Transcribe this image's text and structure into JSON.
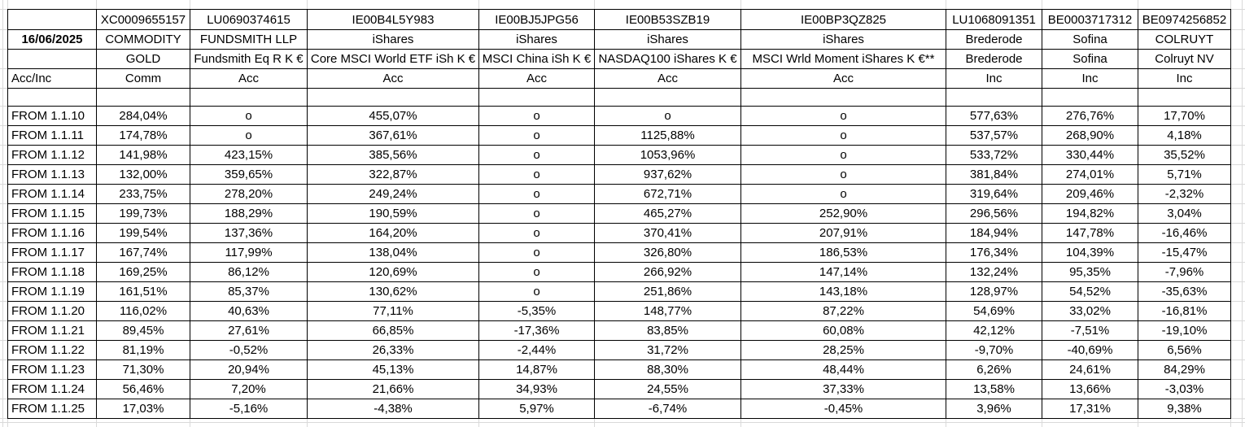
{
  "sheet": {
    "date": "16/06/2025",
    "row_label_header": "Acc/Inc",
    "columns": [
      {
        "isin": "XC0009655157",
        "name": "COMMODITY",
        "fund": "GOLD",
        "type": "Comm"
      },
      {
        "isin": "LU0690374615",
        "name": "FUNDSMITH LLP",
        "fund": "Fundsmith Eq R K €",
        "type": "Acc"
      },
      {
        "isin": "IE00B4L5Y983",
        "name": "iShares",
        "fund": "Core MSCI World ETF iSh K €",
        "type": "Acc"
      },
      {
        "isin": "IE00BJ5JPG56",
        "name": "iShares",
        "fund": "MSCI China iSh K €",
        "type": "Acc"
      },
      {
        "isin": "IE00B53SZB19",
        "name": "iShares",
        "fund": "NASDAQ100 iShares K €",
        "type": "Acc"
      },
      {
        "isin": "IE00BP3QZ825",
        "name": "iShares",
        "fund": "MSCI Wrld Moment iShares K €**",
        "type": "Acc"
      },
      {
        "isin": "LU1068091351",
        "name": "Brederode",
        "fund": "Brederode",
        "type": "Inc"
      },
      {
        "isin": "BE0003717312",
        "name": "Sofina",
        "fund": "Sofina",
        "type": "Inc"
      },
      {
        "isin": "BE0974256852",
        "name": "COLRUYT",
        "fund": "Colruyt NV",
        "type": "Inc"
      }
    ],
    "rows": [
      {
        "label": "FROM 1.1.10",
        "values": [
          "284,04%",
          "o",
          "455,07%",
          "o",
          "o",
          "o",
          "577,63%",
          "276,76%",
          "17,70%"
        ]
      },
      {
        "label": "FROM 1.1.11",
        "values": [
          "174,78%",
          "o",
          "367,61%",
          "o",
          "1125,88%",
          "o",
          "537,57%",
          "268,90%",
          "4,18%"
        ]
      },
      {
        "label": "FROM 1.1.12",
        "values": [
          "141,98%",
          "423,15%",
          "385,56%",
          "o",
          "1053,96%",
          "o",
          "533,72%",
          "330,44%",
          "35,52%"
        ]
      },
      {
        "label": "FROM 1.1.13",
        "values": [
          "132,00%",
          "359,65%",
          "322,87%",
          "o",
          "937,62%",
          "o",
          "381,84%",
          "274,01%",
          "5,71%"
        ]
      },
      {
        "label": "FROM 1.1.14",
        "values": [
          "233,75%",
          "278,20%",
          "249,24%",
          "o",
          "672,71%",
          "o",
          "319,64%",
          "209,46%",
          "-2,32%"
        ]
      },
      {
        "label": "FROM 1.1.15",
        "values": [
          "199,73%",
          "188,29%",
          "190,59%",
          "o",
          "465,27%",
          "252,90%",
          "296,56%",
          "194,82%",
          "3,04%"
        ]
      },
      {
        "label": "FROM 1.1.16",
        "values": [
          "199,54%",
          "137,36%",
          "164,20%",
          "o",
          "370,41%",
          "207,91%",
          "184,94%",
          "147,78%",
          "-16,46%"
        ]
      },
      {
        "label": "FROM 1.1.17",
        "values": [
          "167,74%",
          "117,99%",
          "138,04%",
          "o",
          "326,80%",
          "186,53%",
          "176,34%",
          "104,39%",
          "-15,47%"
        ]
      },
      {
        "label": "FROM 1.1.18",
        "values": [
          "169,25%",
          "86,12%",
          "120,69%",
          "o",
          "266,92%",
          "147,14%",
          "132,24%",
          "95,35%",
          "-7,96%"
        ]
      },
      {
        "label": "FROM 1.1.19",
        "values": [
          "161,51%",
          "85,37%",
          "130,62%",
          "o",
          "251,86%",
          "143,18%",
          "128,97%",
          "54,52%",
          "-35,63%"
        ]
      },
      {
        "label": "FROM 1.1.20",
        "values": [
          "116,02%",
          "40,63%",
          "77,11%",
          "-5,35%",
          "148,77%",
          "87,22%",
          "54,69%",
          "33,02%",
          "-16,81%"
        ]
      },
      {
        "label": "FROM 1.1.21",
        "values": [
          "89,45%",
          "27,61%",
          "66,85%",
          "-17,36%",
          "83,85%",
          "60,08%",
          "42,12%",
          "-7,51%",
          "-19,10%"
        ]
      },
      {
        "label": "FROM 1.1.22",
        "values": [
          "81,19%",
          "-0,52%",
          "26,33%",
          "-2,44%",
          "31,72%",
          "28,25%",
          "-9,70%",
          "-40,69%",
          "6,56%"
        ]
      },
      {
        "label": "FROM 1.1.23",
        "values": [
          "71,30%",
          "20,94%",
          "45,13%",
          "14,87%",
          "88,30%",
          "48,44%",
          "6,26%",
          "24,61%",
          "84,29%"
        ]
      },
      {
        "label": "FROM 1.1.24",
        "values": [
          "56,46%",
          "7,20%",
          "21,66%",
          "34,93%",
          "24,55%",
          "37,33%",
          "13,58%",
          "13,66%",
          "-3,03%"
        ]
      },
      {
        "label": "FROM 1.1.25",
        "values": [
          "17,03%",
          "-5,16%",
          "-4,38%",
          "5,97%",
          "-6,74%",
          "-0,45%",
          "3,96%",
          "17,31%",
          "9,38%"
        ]
      }
    ]
  },
  "colors": {
    "background": "#ffffff",
    "text": "#000000",
    "border": "#000000",
    "gridline": "#d9d9d9"
  }
}
